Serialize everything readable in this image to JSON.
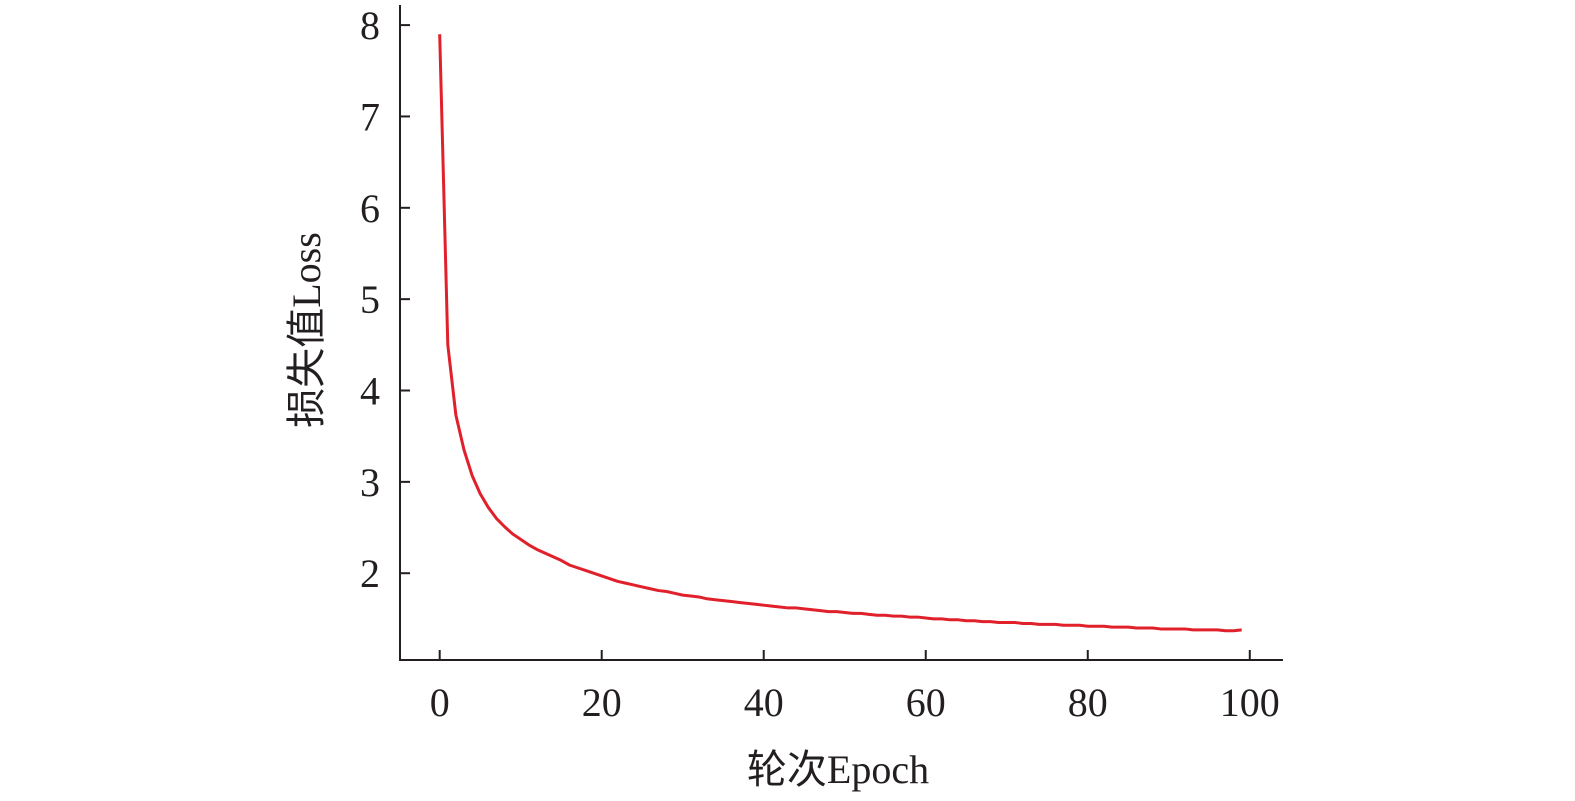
{
  "chart_data": {
    "type": "line",
    "x_label": "轮次Epoch",
    "y_label": "损失值Loss",
    "x": [
      0,
      1,
      2,
      3,
      4,
      5,
      6,
      7,
      8,
      9,
      10,
      11,
      12,
      13,
      14,
      15,
      16,
      17,
      18,
      19,
      20,
      21,
      22,
      23,
      24,
      25,
      26,
      27,
      28,
      29,
      30,
      31,
      32,
      33,
      34,
      35,
      36,
      37,
      38,
      39,
      40,
      41,
      42,
      43,
      44,
      45,
      46,
      47,
      48,
      49,
      50,
      51,
      52,
      53,
      54,
      55,
      56,
      57,
      58,
      59,
      60,
      61,
      62,
      63,
      64,
      65,
      66,
      67,
      68,
      69,
      70,
      71,
      72,
      73,
      74,
      75,
      76,
      77,
      78,
      79,
      80,
      81,
      82,
      83,
      84,
      85,
      86,
      87,
      88,
      89,
      90,
      91,
      92,
      93,
      94,
      95,
      96,
      97,
      98,
      99
    ],
    "series": [
      {
        "color": "#e0202a",
        "values": [
          7.9,
          4.5,
          3.73,
          3.35,
          3.07,
          2.87,
          2.72,
          2.6,
          2.51,
          2.43,
          2.37,
          2.31,
          2.26,
          2.22,
          2.18,
          2.14,
          2.09,
          2.06,
          2.03,
          2.0,
          1.97,
          1.94,
          1.91,
          1.89,
          1.87,
          1.85,
          1.83,
          1.81,
          1.8,
          1.78,
          1.76,
          1.75,
          1.74,
          1.72,
          1.71,
          1.7,
          1.69,
          1.68,
          1.67,
          1.66,
          1.65,
          1.64,
          1.63,
          1.62,
          1.62,
          1.61,
          1.6,
          1.59,
          1.58,
          1.58,
          1.57,
          1.56,
          1.56,
          1.55,
          1.54,
          1.54,
          1.53,
          1.53,
          1.52,
          1.52,
          1.51,
          1.5,
          1.5,
          1.49,
          1.49,
          1.48,
          1.48,
          1.47,
          1.47,
          1.46,
          1.46,
          1.46,
          1.45,
          1.45,
          1.44,
          1.44,
          1.44,
          1.43,
          1.43,
          1.43,
          1.42,
          1.42,
          1.42,
          1.41,
          1.41,
          1.41,
          1.4,
          1.4,
          1.4,
          1.39,
          1.39,
          1.39,
          1.39,
          1.38,
          1.38,
          1.38,
          1.38,
          1.37,
          1.37,
          1.38
        ]
      }
    ],
    "xlim": [
      -4.9,
      104.1
    ],
    "ylim": [
      1.05,
      8.22
    ],
    "xticks": [
      0,
      20,
      40,
      60,
      80,
      100
    ],
    "yticks": [
      2,
      3,
      4,
      5,
      6,
      7,
      8
    ]
  }
}
